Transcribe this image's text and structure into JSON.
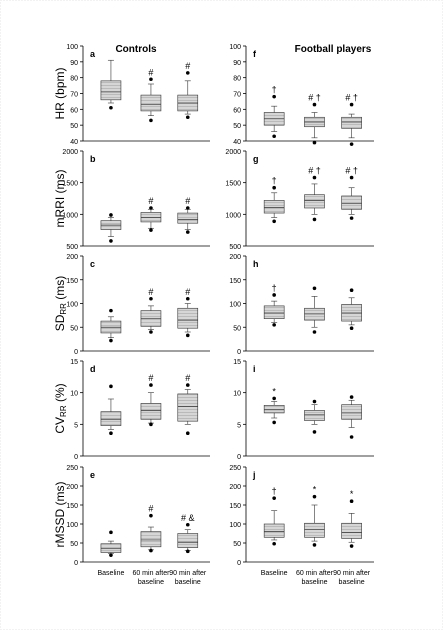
{
  "chart_data": {
    "type": "box",
    "column_titles": {
      "left": "Controls",
      "right": "Football players"
    },
    "x_categories": [
      "Baseline",
      "60 min after baseline",
      "90 min after baseline"
    ],
    "x_tick_lines": [
      [
        "Baseline"
      ],
      [
        "60 min after",
        "baseline"
      ],
      [
        "90 min after",
        "baseline"
      ]
    ],
    "rows": [
      {
        "ylabel": "HR (bpm)",
        "ylabel_main": "HR (bpm)",
        "ylabel_sub": "",
        "ylabel_tail": "",
        "ylim": [
          40,
          100
        ],
        "yticks": [
          40,
          50,
          60,
          70,
          80,
          90,
          100
        ],
        "panels": [
          {
            "label": "a",
            "group": "Controls",
            "boxes": [
              {
                "whislo": 64,
                "q1": 66,
                "med": 71,
                "q3": 78,
                "whishi": 91,
                "fliers": [
                  61
                ],
                "marks": ""
              },
              {
                "whislo": 56,
                "q1": 59,
                "med": 63,
                "q3": 69,
                "whishi": 76,
                "fliers": [
                  79,
                  53
                ],
                "marks": "#"
              },
              {
                "whislo": 57,
                "q1": 59,
                "med": 64,
                "q3": 69,
                "whishi": 78,
                "fliers": [
                  83,
                  55
                ],
                "marks": "#"
              }
            ]
          },
          {
            "label": "f",
            "group": "Football players",
            "boxes": [
              {
                "whislo": 46,
                "q1": 50,
                "med": 54,
                "q3": 58,
                "whishi": 62,
                "fliers": [
                  68,
                  43
                ],
                "marks": "†"
              },
              {
                "whislo": 42,
                "q1": 49,
                "med": 52,
                "q3": 55,
                "whishi": 58,
                "fliers": [
                  63,
                  39
                ],
                "marks": "# †"
              },
              {
                "whislo": 42,
                "q1": 48,
                "med": 52,
                "q3": 55,
                "whishi": 57,
                "fliers": [
                  63,
                  38
                ],
                "marks": "# †"
              }
            ]
          }
        ]
      },
      {
        "ylabel": "mRRI (ms)",
        "ylabel_main": "mRRI (ms)",
        "ylabel_sub": "",
        "ylabel_tail": "",
        "ylim": [
          500,
          2000
        ],
        "yticks": [
          500,
          1000,
          1500,
          2000
        ],
        "panels": [
          {
            "label": "b",
            "group": "Controls",
            "boxes": [
              {
                "whislo": 650,
                "q1": 760,
                "med": 830,
                "q3": 900,
                "whishi": 950,
                "fliers": [
                  990,
                  580
                ],
                "marks": ""
              },
              {
                "whislo": 780,
                "q1": 880,
                "med": 950,
                "q3": 1030,
                "whishi": 1080,
                "fliers": [
                  1100,
                  750
                ],
                "marks": "#"
              },
              {
                "whislo": 760,
                "q1": 860,
                "med": 920,
                "q3": 1020,
                "whishi": 1080,
                "fliers": [
                  1100,
                  720
                ],
                "marks": "#"
              }
            ]
          },
          {
            "label": "g",
            "group": "Football players",
            "boxes": [
              {
                "whislo": 950,
                "q1": 1020,
                "med": 1110,
                "q3": 1220,
                "whishi": 1340,
                "fliers": [
                  1420,
                  890
                ],
                "marks": "†"
              },
              {
                "whislo": 1000,
                "q1": 1100,
                "med": 1220,
                "q3": 1310,
                "whishi": 1480,
                "fliers": [
                  1580,
                  920
                ],
                "marks": "# †"
              },
              {
                "whislo": 1000,
                "q1": 1080,
                "med": 1170,
                "q3": 1290,
                "whishi": 1420,
                "fliers": [
                  1580,
                  940
                ],
                "marks": "# †"
              }
            ]
          }
        ]
      },
      {
        "ylabel": "SDRR (ms)",
        "ylabel_main": "SD",
        "ylabel_sub": "RR",
        "ylabel_tail": " (ms)",
        "ylim": [
          0,
          200
        ],
        "yticks": [
          0,
          50,
          100,
          150,
          200
        ],
        "panels": [
          {
            "label": "c",
            "group": "Controls",
            "boxes": [
              {
                "whislo": 28,
                "q1": 38,
                "med": 50,
                "q3": 63,
                "whishi": 72,
                "fliers": [
                  85,
                  22
                ],
                "marks": ""
              },
              {
                "whislo": 45,
                "q1": 52,
                "med": 68,
                "q3": 85,
                "whishi": 95,
                "fliers": [
                  110,
                  40
                ],
                "marks": "#"
              },
              {
                "whislo": 40,
                "q1": 48,
                "med": 65,
                "q3": 90,
                "whishi": 100,
                "fliers": [
                  110,
                  33
                ],
                "marks": "#"
              }
            ]
          },
          {
            "label": "h",
            "group": "Football players",
            "boxes": [
              {
                "whislo": 60,
                "q1": 68,
                "med": 80,
                "q3": 95,
                "whishi": 105,
                "fliers": [
                  118,
                  55
                ],
                "marks": "†"
              },
              {
                "whislo": 50,
                "q1": 65,
                "med": 78,
                "q3": 90,
                "whishi": 115,
                "fliers": [
                  132,
                  40
                ],
                "marks": ""
              },
              {
                "whislo": 55,
                "q1": 63,
                "med": 80,
                "q3": 98,
                "whishi": 112,
                "fliers": [
                  128,
                  48
                ],
                "marks": ""
              }
            ]
          }
        ]
      },
      {
        "ylabel": "CVRR (%)",
        "ylabel_main": "CV",
        "ylabel_sub": "RR",
        "ylabel_tail": " (%)",
        "ylim": [
          0,
          15
        ],
        "yticks": [
          0,
          5,
          10,
          15
        ],
        "panels": [
          {
            "label": "d",
            "group": "Controls",
            "boxes": [
              {
                "whislo": 4.2,
                "q1": 4.8,
                "med": 5.8,
                "q3": 7.0,
                "whishi": 9.0,
                "fliers": [
                  11.0,
                  3.6
                ],
                "marks": ""
              },
              {
                "whislo": 5.2,
                "q1": 5.8,
                "med": 7.2,
                "q3": 8.3,
                "whishi": 10.0,
                "fliers": [
                  11.2,
                  5.0
                ],
                "marks": "#"
              },
              {
                "whislo": 5.0,
                "q1": 5.5,
                "med": 7.8,
                "q3": 9.8,
                "whishi": 10.5,
                "fliers": [
                  11.2,
                  3.6
                ],
                "marks": "#"
              }
            ]
          },
          {
            "label": "i",
            "group": "Football players",
            "boxes": [
              {
                "whislo": 6.0,
                "q1": 6.8,
                "med": 7.3,
                "q3": 8.0,
                "whishi": 8.6,
                "fliers": [
                  9.1,
                  5.3
                ],
                "marks": "*"
              },
              {
                "whislo": 5.0,
                "q1": 5.6,
                "med": 6.5,
                "q3": 7.2,
                "whishi": 8.1,
                "fliers": [
                  8.6,
                  3.8
                ],
                "marks": ""
              },
              {
                "whislo": 4.5,
                "q1": 5.8,
                "med": 6.8,
                "q3": 8.1,
                "whishi": 8.8,
                "fliers": [
                  9.3,
                  3.0
                ],
                "marks": ""
              }
            ]
          }
        ]
      },
      {
        "ylabel": "rMSSD (ms)",
        "ylabel_main": "rMSSD (ms)",
        "ylabel_sub": "",
        "ylabel_tail": "",
        "ylim": [
          0,
          250
        ],
        "yticks": [
          0,
          50,
          100,
          150,
          200,
          250
        ],
        "panels": [
          {
            "label": "e",
            "group": "Controls",
            "boxes": [
              {
                "whislo": 22,
                "q1": 25,
                "med": 35,
                "q3": 48,
                "whishi": 55,
                "fliers": [
                  78,
                  18
                ],
                "marks": ""
              },
              {
                "whislo": 32,
                "q1": 40,
                "med": 58,
                "q3": 80,
                "whishi": 92,
                "fliers": [
                  122,
                  30
                ],
                "marks": "#"
              },
              {
                "whislo": 30,
                "q1": 38,
                "med": 52,
                "q3": 75,
                "whishi": 85,
                "fliers": [
                  98,
                  28
                ],
                "marks": "# &"
              }
            ]
          },
          {
            "label": "j",
            "group": "Football players",
            "boxes": [
              {
                "whislo": 58,
                "q1": 65,
                "med": 80,
                "q3": 100,
                "whishi": 135,
                "fliers": [
                  168,
                  48
                ],
                "marks": "†"
              },
              {
                "whislo": 55,
                "q1": 65,
                "med": 85,
                "q3": 102,
                "whishi": 150,
                "fliers": [
                  172,
                  45
                ],
                "marks": "*"
              },
              {
                "whislo": 52,
                "q1": 62,
                "med": 78,
                "q3": 102,
                "whishi": 128,
                "fliers": [
                  160,
                  42
                ],
                "marks": "*"
              }
            ]
          }
        ]
      }
    ]
  }
}
